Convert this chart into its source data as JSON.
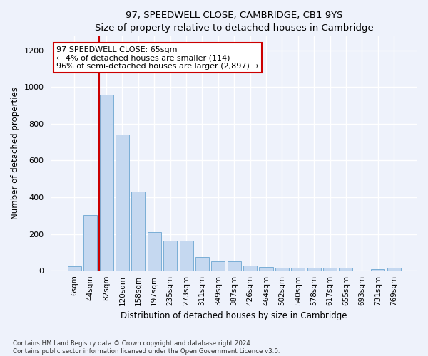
{
  "title": "97, SPEEDWELL CLOSE, CAMBRIDGE, CB1 9YS",
  "subtitle": "Size of property relative to detached houses in Cambridge",
  "xlabel": "Distribution of detached houses by size in Cambridge",
  "ylabel": "Number of detached properties",
  "bar_color": "#c5d8f0",
  "bar_edge_color": "#7aaed6",
  "vline_color": "#cc0000",
  "categories": [
    "6sqm",
    "44sqm",
    "82sqm",
    "120sqm",
    "158sqm",
    "197sqm",
    "235sqm",
    "273sqm",
    "311sqm",
    "349sqm",
    "387sqm",
    "426sqm",
    "464sqm",
    "502sqm",
    "540sqm",
    "578sqm",
    "617sqm",
    "655sqm",
    "693sqm",
    "731sqm",
    "769sqm"
  ],
  "values": [
    25,
    305,
    960,
    740,
    430,
    210,
    165,
    165,
    75,
    50,
    50,
    30,
    20,
    15,
    15,
    15,
    15,
    15,
    0,
    10,
    15
  ],
  "ylim": [
    0,
    1280
  ],
  "yticks": [
    0,
    200,
    400,
    600,
    800,
    1000,
    1200
  ],
  "annotation_text": "97 SPEEDWELL CLOSE: 65sqm\n← 4% of detached houses are smaller (114)\n96% of semi-detached houses are larger (2,897) →",
  "footer_line1": "Contains HM Land Registry data © Crown copyright and database right 2024.",
  "footer_line2": "Contains public sector information licensed under the Open Government Licence v3.0.",
  "background_color": "#eef2fb",
  "plot_bg_color": "#eef2fb",
  "grid_color": "#ffffff",
  "vline_x_index": 1.57
}
